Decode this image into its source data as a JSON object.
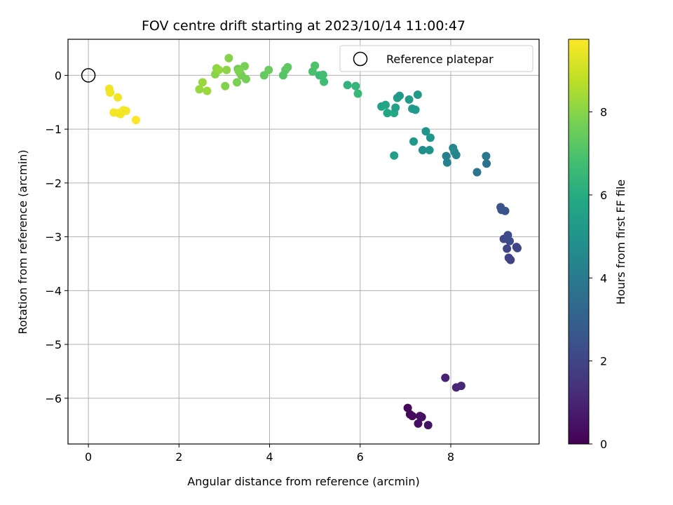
{
  "chart_data": {
    "type": "scatter",
    "title": "FOV centre drift starting at 2023/10/14 11:00:47",
    "xlabel": "Angular distance from reference (arcmin)",
    "ylabel": "Rotation from reference (arcmin)",
    "xlim": [
      -0.45,
      9.95
    ],
    "ylim": [
      -6.85,
      0.67
    ],
    "xticks": [
      0,
      2,
      4,
      6,
      8
    ],
    "yticks": [
      0,
      -1,
      -2,
      -3,
      -4,
      -5,
      -6
    ],
    "grid": true,
    "legend": {
      "placement": "top-right",
      "entries": [
        "Reference platepar"
      ]
    },
    "reference_point": {
      "x": 0,
      "y": 0
    },
    "colorbar": {
      "label": "Hours from first FF file",
      "range": [
        0,
        9.75
      ],
      "ticks": [
        0,
        2,
        4,
        6,
        8
      ],
      "colormap": "viridis"
    },
    "series": [
      {
        "x": [
          7.05,
          7.1,
          7.15,
          7.28,
          7.32,
          7.36,
          7.5,
          7.88,
          8.12,
          8.23,
          9.1,
          9.12,
          9.2,
          9.17,
          9.26,
          9.3,
          9.24,
          9.28,
          9.32,
          9.45,
          9.47,
          8.58,
          8.78,
          8.79,
          7.9,
          7.92,
          8.05,
          8.08,
          8.12,
          7.38,
          7.53,
          7.45,
          7.55,
          7.18,
          6.75,
          6.47,
          6.56,
          6.6,
          6.75,
          6.82,
          6.87,
          7.08,
          7.15,
          7.22,
          7.27,
          6.78,
          5.72,
          5.9,
          5.95,
          5.1,
          5.2,
          5.18,
          4.95,
          5.0,
          4.3,
          4.35,
          4.4,
          3.88,
          3.98,
          3.3,
          3.35,
          3.38,
          3.45,
          3.28,
          3.32,
          3.02,
          3.1,
          3.48,
          2.8,
          2.83,
          2.88,
          3.05,
          2.45,
          2.52,
          2.62,
          0.46,
          0.48,
          0.56,
          0.67,
          0.71,
          0.77,
          0.83,
          1.05,
          0.65
        ],
        "y": [
          -6.18,
          -6.3,
          -6.33,
          -6.47,
          -6.33,
          -6.35,
          -6.5,
          -5.62,
          -5.8,
          -5.77,
          -2.45,
          -2.5,
          -2.52,
          -3.04,
          -2.97,
          -3.08,
          -3.22,
          -3.39,
          -3.43,
          -3.19,
          -3.21,
          -1.8,
          -1.5,
          -1.64,
          -1.5,
          -1.62,
          -1.35,
          -1.42,
          -1.48,
          -1.39,
          -1.39,
          -1.04,
          -1.16,
          -1.23,
          -1.49,
          -0.58,
          -0.55,
          -0.7,
          -0.7,
          -0.42,
          -0.38,
          -0.45,
          -0.62,
          -0.64,
          -0.36,
          -0.6,
          -0.18,
          -0.2,
          -0.34,
          0.0,
          -0.12,
          0.01,
          0.07,
          0.18,
          0.0,
          0.1,
          0.15,
          0.0,
          0.1,
          0.12,
          0.04,
          0.0,
          0.17,
          -0.13,
          0.08,
          -0.2,
          0.32,
          -0.07,
          0.02,
          0.13,
          0.1,
          0.1,
          -0.26,
          -0.13,
          -0.29,
          -0.25,
          -0.32,
          -0.69,
          -0.7,
          -0.72,
          -0.65,
          -0.66,
          -0.83,
          -0.41
        ],
        "c": [
          0.2,
          0.25,
          0.3,
          0.35,
          0.4,
          0.45,
          0.5,
          0.9,
          1.0,
          1.1,
          2.5,
          2.55,
          2.6,
          2.1,
          2.15,
          2.2,
          2.0,
          1.9,
          1.85,
          1.95,
          2.0,
          3.8,
          3.9,
          3.7,
          4.2,
          4.3,
          4.5,
          4.6,
          4.4,
          4.8,
          4.9,
          5.0,
          5.1,
          5.2,
          5.5,
          5.6,
          5.7,
          5.8,
          5.9,
          5.4,
          5.3,
          5.35,
          5.25,
          5.3,
          5.2,
          5.55,
          6.3,
          6.4,
          6.5,
          6.6,
          6.7,
          6.8,
          6.9,
          7.0,
          7.1,
          7.2,
          7.3,
          7.4,
          7.5,
          7.6,
          7.7,
          7.65,
          7.75,
          7.8,
          7.85,
          7.9,
          7.95,
          7.7,
          8.0,
          8.1,
          8.15,
          8.05,
          8.2,
          8.25,
          8.3,
          9.5,
          9.55,
          9.6,
          9.62,
          9.58,
          9.65,
          9.6,
          9.7,
          9.56
        ]
      }
    ]
  }
}
